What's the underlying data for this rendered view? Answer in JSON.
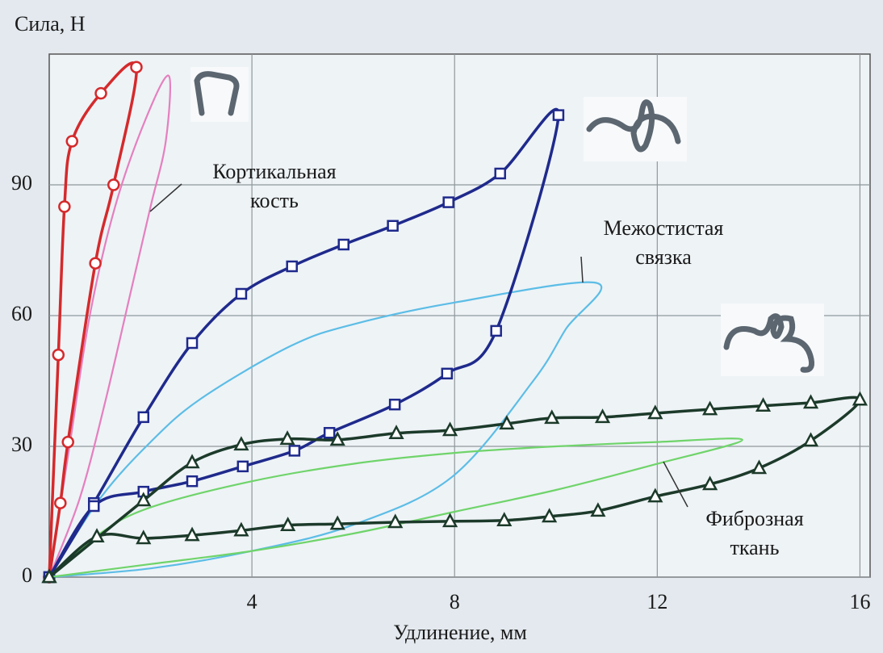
{
  "chart_data": {
    "type": "line",
    "ylabel": "Сила, Н",
    "xlabel": "Удлинение, мм",
    "xlim": [
      0,
      16.2
    ],
    "ylim": [
      0,
      120
    ],
    "xticks": [
      4,
      8,
      12,
      16
    ],
    "yticks": [
      0,
      30,
      60,
      90
    ],
    "grid": true,
    "series": [
      {
        "color": "#e57fbf",
        "marker": "none",
        "x": [
          0,
          0.4,
          0.8,
          1.3,
          1.9,
          2.36,
          2.3,
          2.0,
          1.6,
          1.1,
          0.6,
          0
        ],
        "values": [
          0,
          30,
          60,
          85,
          105,
          115,
          100,
          85,
          65,
          40,
          18,
          0
        ]
      },
      {
        "color": "#d42a2c",
        "marker": "circle",
        "x": [
          0,
          0.18,
          0.3,
          0.45,
          1.02,
          1.72,
          1.27,
          0.91,
          0.37,
          0.22,
          0
        ],
        "values": [
          0,
          51,
          85,
          100,
          111,
          117,
          90,
          72,
          31,
          17,
          0
        ]
      },
      {
        "color": "#5cbde6",
        "marker": "none",
        "x": [
          0,
          1,
          2,
          3,
          4.76,
          6,
          8,
          10.8,
          10.2,
          9.55,
          7.95,
          6,
          4,
          2,
          0
        ],
        "values": [
          0,
          18,
          31,
          41,
          53,
          58,
          63,
          67.5,
          57,
          45,
          23,
          12,
          6,
          2,
          0
        ]
      },
      {
        "color": "#1f2a8c",
        "marker": "square",
        "x": [
          0,
          0.88,
          1.86,
          2.82,
          3.79,
          4.79,
          5.81,
          6.78,
          7.88,
          8.9,
          10.05,
          8.82,
          7.85,
          6.82,
          5.53,
          4.84,
          3.82,
          2.82,
          1.86,
          0.88,
          0
        ],
        "values": [
          0,
          17,
          36.7,
          53.7,
          65,
          71.3,
          76.3,
          80.6,
          86,
          92.6,
          106,
          56.5,
          46.7,
          39.6,
          33.1,
          29,
          25.4,
          22,
          19.6,
          16.3,
          0
        ]
      },
      {
        "color": "#6fd46a",
        "marker": "none",
        "x": [
          0,
          1,
          2,
          4,
          6,
          8,
          10,
          12,
          13.68,
          12,
          10,
          8,
          6,
          4,
          2,
          0
        ],
        "values": [
          0,
          10,
          16,
          22,
          26,
          28.5,
          30,
          31,
          31.5,
          26,
          20,
          15,
          10,
          6,
          3,
          0
        ]
      },
      {
        "color": "#1c3a2a",
        "marker": "triangle",
        "x": [
          0,
          1.86,
          2.82,
          3.79,
          4.7,
          5.69,
          6.85,
          7.91,
          9.03,
          9.92,
          10.92,
          11.96,
          13.04,
          14.09,
          15.03,
          16,
          15.03,
          14.01,
          13.04,
          11.96,
          10.83,
          9.87,
          8.98,
          7.91,
          6.83,
          5.69,
          4.71,
          3.79,
          2.82,
          1.86,
          0.94,
          0
        ],
        "values": [
          0,
          17.6,
          26.3,
          30.4,
          31.7,
          31.5,
          33,
          33.7,
          35.2,
          36.5,
          36.7,
          37.6,
          38.5,
          39.3,
          40,
          40.7,
          31.3,
          25,
          21.3,
          18.5,
          15.2,
          13.9,
          13,
          12.8,
          12.6,
          12.2,
          11.9,
          10.7,
          9.6,
          8.9,
          9.3,
          0
        ]
      }
    ],
    "annotations": [
      {
        "lines": [
          "Кортикальная",
          "кость"
        ]
      },
      {
        "lines": [
          "Межостистая",
          "связка"
        ]
      },
      {
        "lines": [
          "Фиброзная",
          "ткань"
        ]
      }
    ]
  }
}
